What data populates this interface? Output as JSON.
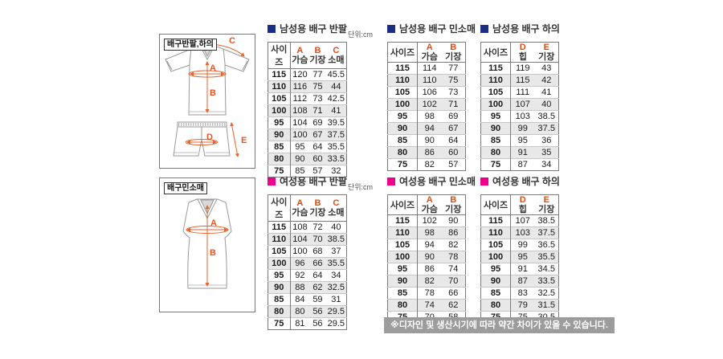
{
  "unit_label": "단위:cm",
  "footer": {
    "note": "※디자인 및 생산시기에 따라 약간 차이가 있을 수 있습니다."
  },
  "colors": {
    "men_accent": "#1c2d86",
    "women_accent": "#ec008c",
    "measure_arrow": "#e8632c",
    "measure_letter": "#e8551f"
  },
  "diagram_top": {
    "label": "배구반팔,하의",
    "letters": {
      "a": "A",
      "b": "B",
      "c": "C",
      "d": "D",
      "e": "E"
    }
  },
  "diagram_bottom": {
    "label": "배구민소매",
    "letters": {
      "a": "A",
      "b": "B"
    }
  },
  "tables": [
    {
      "title": "남성용 배구 반팔",
      "accent": "#1c2d86",
      "show_unit": true,
      "columns": [
        {
          "letter": "",
          "label": "사이즈"
        },
        {
          "letter": "A",
          "label": "가슴"
        },
        {
          "letter": "B",
          "label": "기장"
        },
        {
          "letter": "C",
          "label": "소매"
        }
      ],
      "rows": [
        [
          "115",
          "120",
          "77",
          "45.5"
        ],
        [
          "110",
          "116",
          "75",
          "44"
        ],
        [
          "105",
          "112",
          "73",
          "42.5"
        ],
        [
          "100",
          "108",
          "71",
          "41"
        ],
        [
          "95",
          "104",
          "69",
          "39.5"
        ],
        [
          "90",
          "100",
          "67",
          "37.5"
        ],
        [
          "85",
          "95",
          "64",
          "35.5"
        ],
        [
          "80",
          "90",
          "60",
          "33.5"
        ],
        [
          "75",
          "85",
          "57",
          "32"
        ]
      ]
    },
    {
      "title": "남성용 배구 민소매",
      "accent": "#1c2d86",
      "show_unit": false,
      "columns": [
        {
          "letter": "",
          "label": "사이즈"
        },
        {
          "letter": "A",
          "label": "가슴"
        },
        {
          "letter": "B",
          "label": "기장"
        }
      ],
      "rows": [
        [
          "115",
          "114",
          "77"
        ],
        [
          "110",
          "110",
          "75"
        ],
        [
          "105",
          "106",
          "73"
        ],
        [
          "100",
          "102",
          "71"
        ],
        [
          "95",
          "98",
          "69"
        ],
        [
          "90",
          "94",
          "67"
        ],
        [
          "85",
          "90",
          "64"
        ],
        [
          "80",
          "86",
          "60"
        ],
        [
          "75",
          "82",
          "57"
        ]
      ]
    },
    {
      "title": "남성용 배구 하의",
      "accent": "#1c2d86",
      "show_unit": false,
      "columns": [
        {
          "letter": "",
          "label": "사이즈"
        },
        {
          "letter": "D",
          "label": "힙"
        },
        {
          "letter": "E",
          "label": "기장"
        }
      ],
      "rows": [
        [
          "115",
          "119",
          "43"
        ],
        [
          "110",
          "115",
          "42"
        ],
        [
          "105",
          "111",
          "41"
        ],
        [
          "100",
          "107",
          "40"
        ],
        [
          "95",
          "103",
          "38.5"
        ],
        [
          "90",
          "99",
          "37.5"
        ],
        [
          "85",
          "95",
          "36"
        ],
        [
          "80",
          "91",
          "35"
        ],
        [
          "75",
          "87",
          "34"
        ]
      ]
    },
    {
      "title": "여성용 배구 반팔",
      "accent": "#ec008c",
      "show_unit": true,
      "columns": [
        {
          "letter": "",
          "label": "사이즈"
        },
        {
          "letter": "A",
          "label": "가슴"
        },
        {
          "letter": "B",
          "label": "기장"
        },
        {
          "letter": "C",
          "label": "소매"
        }
      ],
      "rows": [
        [
          "115",
          "108",
          "72",
          "40"
        ],
        [
          "110",
          "104",
          "70",
          "38.5"
        ],
        [
          "105",
          "100",
          "68",
          "37"
        ],
        [
          "100",
          "96",
          "66",
          "35.5"
        ],
        [
          "95",
          "92",
          "64",
          "34"
        ],
        [
          "90",
          "88",
          "62",
          "32.5"
        ],
        [
          "85",
          "84",
          "59",
          "31"
        ],
        [
          "80",
          "80",
          "56",
          "29.5"
        ],
        [
          "75",
          "81",
          "56",
          "29.5"
        ]
      ]
    },
    {
      "title": "여성용 배구 민소매",
      "accent": "#ec008c",
      "show_unit": false,
      "columns": [
        {
          "letter": "",
          "label": "사이즈"
        },
        {
          "letter": "A",
          "label": "가슴"
        },
        {
          "letter": "B",
          "label": "기장"
        }
      ],
      "rows": [
        [
          "115",
          "102",
          "90"
        ],
        [
          "110",
          "98",
          "86"
        ],
        [
          "105",
          "94",
          "82"
        ],
        [
          "100",
          "90",
          "78"
        ],
        [
          "95",
          "86",
          "74"
        ],
        [
          "90",
          "82",
          "70"
        ],
        [
          "85",
          "78",
          "66"
        ],
        [
          "80",
          "74",
          "62"
        ],
        [
          "75",
          "70",
          "58"
        ]
      ]
    },
    {
      "title": "여성용 배구 하의",
      "accent": "#ec008c",
      "show_unit": false,
      "columns": [
        {
          "letter": "",
          "label": "사이즈"
        },
        {
          "letter": "D",
          "label": "힙"
        },
        {
          "letter": "E",
          "label": "기장"
        }
      ],
      "rows": [
        [
          "115",
          "107",
          "38.5"
        ],
        [
          "110",
          "103",
          "37.5"
        ],
        [
          "105",
          "99",
          "36.5"
        ],
        [
          "100",
          "95",
          "35.5"
        ],
        [
          "95",
          "91",
          "34.5"
        ],
        [
          "90",
          "87",
          "33.5"
        ],
        [
          "85",
          "83",
          "32.5"
        ],
        [
          "80",
          "79",
          "31.5"
        ],
        [
          "75",
          "75",
          "30.5"
        ]
      ]
    }
  ]
}
